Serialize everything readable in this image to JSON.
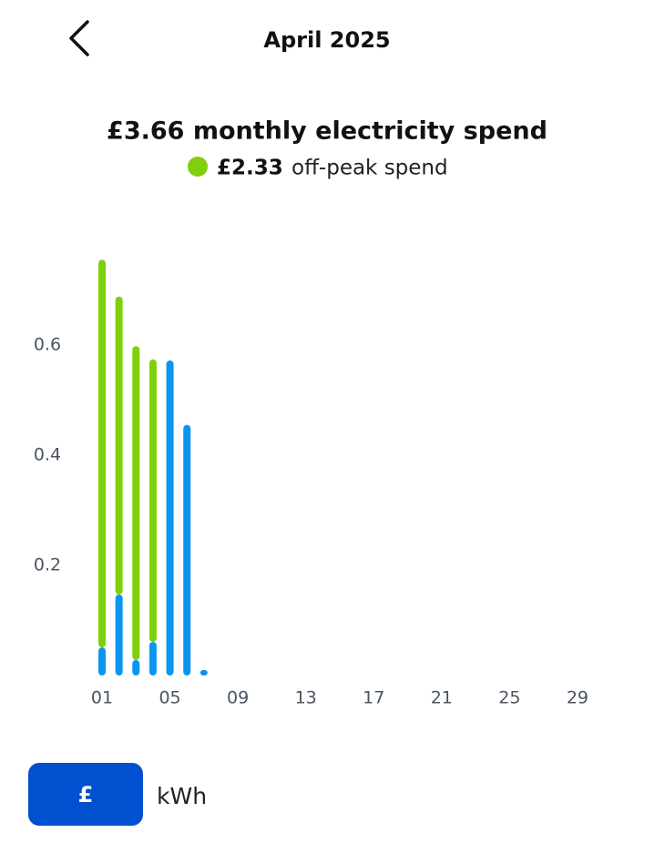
{
  "header": {
    "title": "April 2025"
  },
  "chart_data": {
    "type": "stacked-bar",
    "title": "£3.66 monthly electricity spend",
    "categories": [
      "01",
      null,
      null,
      null,
      "05",
      null,
      null,
      null,
      "09",
      null,
      null,
      null,
      "13",
      null,
      null,
      null,
      "17",
      null,
      null,
      null,
      "21",
      null,
      null,
      null,
      "25",
      null,
      null,
      null,
      "29",
      null
    ],
    "series": [
      {
        "color": "#0a96f0",
        "values": [
          0.051,
          0.147,
          0.028,
          0.061,
          0.572,
          0.455,
          0.01,
          null,
          null,
          null,
          null,
          null,
          null,
          null,
          null,
          null,
          null,
          null,
          null,
          null,
          null,
          null,
          null,
          null,
          null,
          null,
          null,
          null,
          null,
          null
        ]
      },
      {
        "name": "off-peak spend",
        "total_label": "£2.33",
        "color": "#7fd00a",
        "values": [
          0.704,
          0.541,
          0.57,
          0.513,
          null,
          null,
          null,
          null,
          null,
          null,
          null,
          null,
          null,
          null,
          null,
          null,
          null,
          null,
          null,
          null,
          null,
          null,
          null,
          null,
          null,
          null,
          null,
          null,
          null,
          null
        ]
      }
    ],
    "ylim": [
      0,
      0.8
    ],
    "yticks": [
      0.2,
      0.4,
      0.6
    ]
  },
  "unit_toggle": {
    "options": [
      "£",
      "kWh"
    ]
  }
}
